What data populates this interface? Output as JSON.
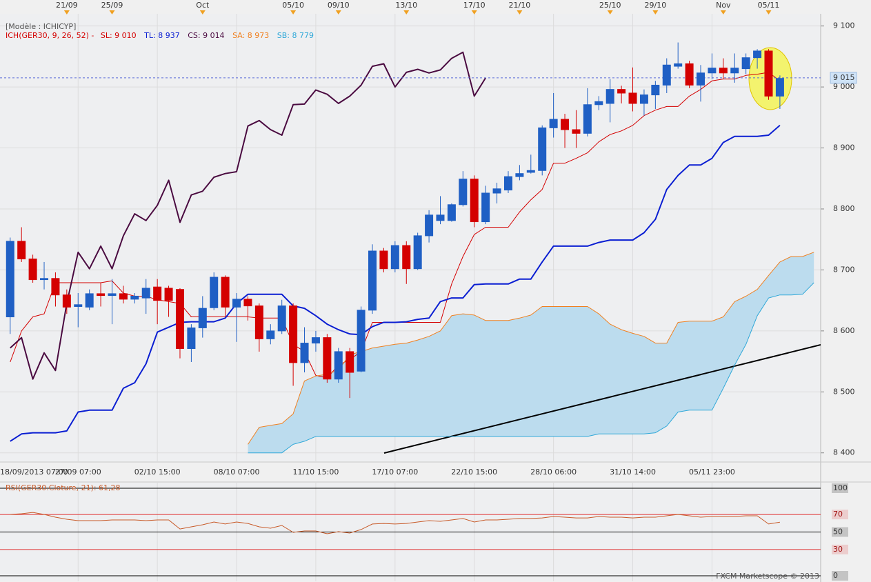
{
  "chart_data": [
    {
      "type": "candlestick",
      "model": "[Modèle : ICHICYP]",
      "indicator": "ICH(GER30, 9, 26, 52) -",
      "xlim": [
        -0.9,
        71.6
      ],
      "ylim": [
        8385,
        9120
      ],
      "yticks": [
        {
          "value": 9100,
          "label": "9 100"
        },
        {
          "value": 9000,
          "label": "9 000"
        },
        {
          "value": 8900,
          "label": "8 900"
        },
        {
          "value": 8800,
          "label": "8 800"
        },
        {
          "value": 8700,
          "label": "8 700"
        },
        {
          "value": 8600,
          "label": "8 600"
        },
        {
          "value": 8500,
          "label": "8 500"
        },
        {
          "value": 8400,
          "label": "8 400"
        }
      ],
      "xticks": [
        {
          "value": -1,
          "label": "18/09/2013 07:00"
        },
        {
          "value": 6,
          "label": "27/09 07:00"
        },
        {
          "value": 13,
          "label": "02/10 15:00"
        },
        {
          "value": 20,
          "label": "08/10 07:00"
        },
        {
          "value": 27,
          "label": "11/10 15:00"
        },
        {
          "value": 34,
          "label": "17/10 07:00"
        },
        {
          "value": 41,
          "label": "22/10 15:00"
        },
        {
          "value": 48,
          "label": "28/10 06:00"
        },
        {
          "value": 55,
          "label": "31/10 14:00"
        },
        {
          "value": 62,
          "label": "05/11 23:00"
        }
      ],
      "x2ticks": [
        {
          "value": 5,
          "label": "21/09"
        },
        {
          "value": 9,
          "label": "25/09"
        },
        {
          "value": 17,
          "label": "Oct"
        },
        {
          "value": 25,
          "label": "05/10"
        },
        {
          "value": 29,
          "label": "09/10"
        },
        {
          "value": 35,
          "label": "13/10"
        },
        {
          "value": 41,
          "label": "17/10"
        },
        {
          "value": 45,
          "label": "21/10"
        },
        {
          "value": 53,
          "label": "25/10"
        },
        {
          "value": 57,
          "label": "29/10"
        },
        {
          "value": 63,
          "label": "Nov"
        },
        {
          "value": 67,
          "label": "05/11"
        }
      ],
      "grid": true,
      "last_price": {
        "value": 9015,
        "label": "9 015"
      },
      "up_color": "#1f5fc4",
      "down_color": "#d40000",
      "cloud_color": "#bcdcee",
      "open": [
        8623,
        8747,
        8718,
        8684,
        8686,
        8659,
        8640,
        8639,
        8661,
        8658,
        8661,
        8652,
        8654,
        8672,
        8670,
        8668,
        8571,
        8605,
        8638,
        8688,
        8639,
        8652,
        8641,
        8587,
        8600,
        8641,
        8548,
        8580,
        8589,
        8521,
        8566,
        8534,
        8634,
        8731,
        8702,
        8740,
        8702,
        8756,
        8781,
        8781,
        8807,
        8849,
        8779,
        8826,
        8831,
        8853,
        8860,
        8863,
        8933,
        8947,
        8930,
        8924,
        8971,
        8973,
        8996,
        8990,
        8973,
        8987,
        9003,
        9034,
        9038,
        9003,
        9023,
        9031,
        9023,
        9030,
        9048,
        9059,
        8985,
        null,
        null,
        null
      ],
      "high": [
        8753,
        8770,
        8725,
        8713,
        8696,
        8668,
        8662,
        8668,
        8679,
        8685,
        8674,
        8662,
        8685,
        8685,
        8674,
        8670,
        8611,
        8657,
        8696,
        8691,
        8662,
        8657,
        8645,
        8611,
        8651,
        8645,
        8606,
        8600,
        8595,
        8572,
        8572,
        8640,
        8742,
        8736,
        8747,
        8747,
        8761,
        8798,
        8821,
        8809,
        8862,
        8855,
        8838,
        8843,
        8862,
        8872,
        8889,
        8937,
        8990,
        8956,
        8962,
        8998,
        8985,
        9013,
        9002,
        9032,
        8996,
        9010,
        9047,
        9073,
        9043,
        9036,
        9055,
        9047,
        9055,
        9055,
        9062,
        9062,
        9019,
        null,
        null,
        null
      ],
      "low": [
        8595,
        8713,
        8679,
        8668,
        8640,
        8628,
        8606,
        8634,
        8640,
        8611,
        8645,
        8645,
        8628,
        8611,
        8623,
        8555,
        8549,
        8589,
        8634,
        8623,
        8582,
        8617,
        8566,
        8578,
        8595,
        8510,
        8532,
        8566,
        8515,
        8515,
        8490,
        8532,
        8628,
        8696,
        8696,
        8677,
        8700,
        8745,
        8775,
        8779,
        8804,
        8770,
        8775,
        8809,
        8826,
        8847,
        8858,
        8855,
        8917,
        8900,
        8900,
        8919,
        8962,
        8942,
        8973,
        8960,
        8953,
        8964,
        8990,
        9030,
        8998,
        8976,
        9013,
        9013,
        9007,
        9021,
        9030,
        8979,
        8964,
        null,
        null,
        null
      ],
      "close": [
        8747,
        8718,
        8684,
        8686,
        8659,
        8639,
        8643,
        8661,
        8658,
        8661,
        8652,
        8657,
        8670,
        8650,
        8650,
        8571,
        8605,
        8637,
        8688,
        8639,
        8652,
        8641,
        8587,
        8600,
        8641,
        8548,
        8580,
        8589,
        8521,
        8566,
        8532,
        8634,
        8731,
        8702,
        8740,
        8702,
        8756,
        8790,
        8790,
        8807,
        8849,
        8779,
        8826,
        8833,
        8853,
        8858,
        8863,
        8933,
        8947,
        8930,
        8924,
        8971,
        8976,
        8996,
        8990,
        8973,
        8987,
        9003,
        9036,
        9038,
        9003,
        9023,
        9031,
        9023,
        9031,
        9048,
        9059,
        8985,
        9014,
        null,
        null,
        null
      ],
      "series": [
        {
          "name": "SL: 9 010",
          "color": "#d40000",
          "width": 1,
          "values": [
            8549,
            8600,
            8623,
            8628,
            8679,
            8679,
            8679,
            8679,
            8679,
            8682,
            8662,
            8657,
            8657,
            8651,
            8648,
            8645,
            8623,
            8623,
            8623,
            8623,
            8623,
            8623,
            8621,
            8621,
            8621,
            8578,
            8566,
            8527,
            8523,
            8544,
            8553,
            8566,
            8614,
            8614,
            8614,
            8614,
            8614,
            8614,
            8614,
            8677,
            8722,
            8758,
            8770,
            8770,
            8770,
            8795,
            8815,
            8832,
            8875,
            8875,
            8883,
            8892,
            8910,
            8922,
            8928,
            8937,
            8953,
            8962,
            8968,
            8968,
            8985,
            8996,
            9010,
            9013,
            9013,
            9019,
            9021,
            9024,
            9010,
            null,
            null,
            null
          ]
        },
        {
          "name": "TL: 8 937",
          "color": "#0a1ed2",
          "width": 2,
          "values": [
            8419,
            8431,
            8433,
            8433,
            8433,
            8436,
            8467,
            8470,
            8470,
            8470,
            8506,
            8515,
            8546,
            8598,
            8606,
            8614,
            8615,
            8615,
            8615,
            8621,
            8645,
            8660,
            8660,
            8660,
            8660,
            8641,
            8637,
            8625,
            8611,
            8602,
            8595,
            8594,
            8607,
            8614,
            8614,
            8615,
            8619,
            8621,
            8648,
            8654,
            8654,
            8676,
            8677,
            8677,
            8677,
            8685,
            8685,
            8713,
            8739,
            8739,
            8739,
            8739,
            8745,
            8749,
            8749,
            8749,
            8761,
            8783,
            8832,
            8855,
            8872,
            8872,
            8883,
            8909,
            8919,
            8919,
            8919,
            8921,
            8937,
            null,
            null,
            null
          ]
        },
        {
          "name": "CS: 9 014",
          "color": "#4a0a40",
          "width": 2,
          "values": [
            8572,
            8589,
            8521,
            8564,
            8535,
            8645,
            8729,
            8702,
            8739,
            8702,
            8756,
            8792,
            8781,
            8806,
            8847,
            8778,
            8823,
            8829,
            8852,
            8858,
            8861,
            8936,
            8945,
            8930,
            8921,
            8971,
            8972,
            8995,
            8988,
            8973,
            8985,
            9003,
            9034,
            9038,
            9000,
            9024,
            9029,
            9023,
            9028,
            9047,
            9057,
            8985,
            9015,
            null,
            null,
            null,
            null,
            null,
            null,
            null,
            null,
            null,
            null,
            null,
            null,
            null,
            null,
            null,
            null,
            null,
            null,
            null,
            null,
            null,
            null,
            null,
            null,
            null,
            null,
            null,
            null,
            null
          ]
        },
        {
          "name": "SA: 8 973",
          "color": "#f08020",
          "width": 1,
          "values": [
            null,
            null,
            null,
            null,
            null,
            null,
            null,
            null,
            null,
            null,
            null,
            null,
            null,
            null,
            null,
            null,
            null,
            null,
            null,
            null,
            null,
            8414,
            8442,
            8445,
            8448,
            8464,
            8518,
            8526,
            8529,
            8536,
            8561,
            8566,
            8572,
            8575,
            8578,
            8580,
            8585,
            8591,
            8600,
            8625,
            8628,
            8626,
            8617,
            8617,
            8617,
            8621,
            8626,
            8640,
            8640,
            8640,
            8640,
            8640,
            8628,
            8611,
            8602,
            8596,
            8591,
            8580,
            8580,
            8614,
            8616,
            8616,
            8616,
            8623,
            8648,
            8657,
            8668,
            8691,
            8713,
            8722,
            8722,
            8729
          ]
        },
        {
          "name": "SB: 8 779",
          "color": "#30a8d8",
          "width": 1,
          "values": [
            null,
            null,
            null,
            null,
            null,
            null,
            null,
            null,
            null,
            null,
            null,
            null,
            null,
            null,
            null,
            null,
            null,
            null,
            null,
            null,
            null,
            8400,
            8400,
            8400,
            8400,
            8414,
            8419,
            8427,
            8427,
            8427,
            8427,
            8427,
            8427,
            8427,
            8427,
            8427,
            8427,
            8427,
            8427,
            8427,
            8427,
            8427,
            8427,
            8427,
            8427,
            8427,
            8427,
            8427,
            8427,
            8427,
            8427,
            8427,
            8431,
            8431,
            8431,
            8431,
            8431,
            8433,
            8444,
            8467,
            8470,
            8470,
            8470,
            8506,
            8544,
            8578,
            8625,
            8654,
            8659,
            8659,
            8660,
            8679
          ]
        }
      ]
    },
    {
      "type": "line",
      "title": "RSI(GER30.Cloture, 21): 61,28",
      "color": "#c85a28",
      "xlim": [
        -0.9,
        71.6
      ],
      "ylim": [
        -6.3,
        106.3
      ],
      "yticks": [
        100,
        70,
        50,
        30,
        0
      ],
      "tick_colors": [
        "#000000",
        "#e03030",
        "#000000",
        "#e03030",
        "#000000"
      ],
      "footer": "FXCM Marketscope © 2013",
      "values": [
        70.1,
        70.9,
        72.4,
        70.1,
        66.9,
        64.6,
        63.0,
        63.0,
        63.0,
        63.8,
        63.8,
        63.8,
        63.0,
        63.8,
        63.8,
        53.5,
        55.9,
        58.3,
        61.4,
        59.1,
        61.4,
        59.8,
        55.9,
        54.3,
        57.5,
        49.6,
        51.2,
        51.2,
        48.0,
        50.4,
        48.8,
        52.8,
        59.1,
        59.8,
        59.1,
        59.8,
        61.4,
        63.0,
        62.2,
        63.8,
        65.4,
        61.4,
        63.8,
        63.8,
        64.6,
        65.4,
        65.4,
        66.1,
        67.7,
        66.9,
        66.1,
        66.1,
        67.7,
        66.9,
        66.9,
        66.1,
        66.9,
        66.9,
        68.5,
        70.1,
        68.5,
        66.9,
        67.7,
        67.7,
        67.7,
        68.5,
        68.5,
        59.1,
        61.28,
        null,
        null,
        null
      ]
    }
  ]
}
